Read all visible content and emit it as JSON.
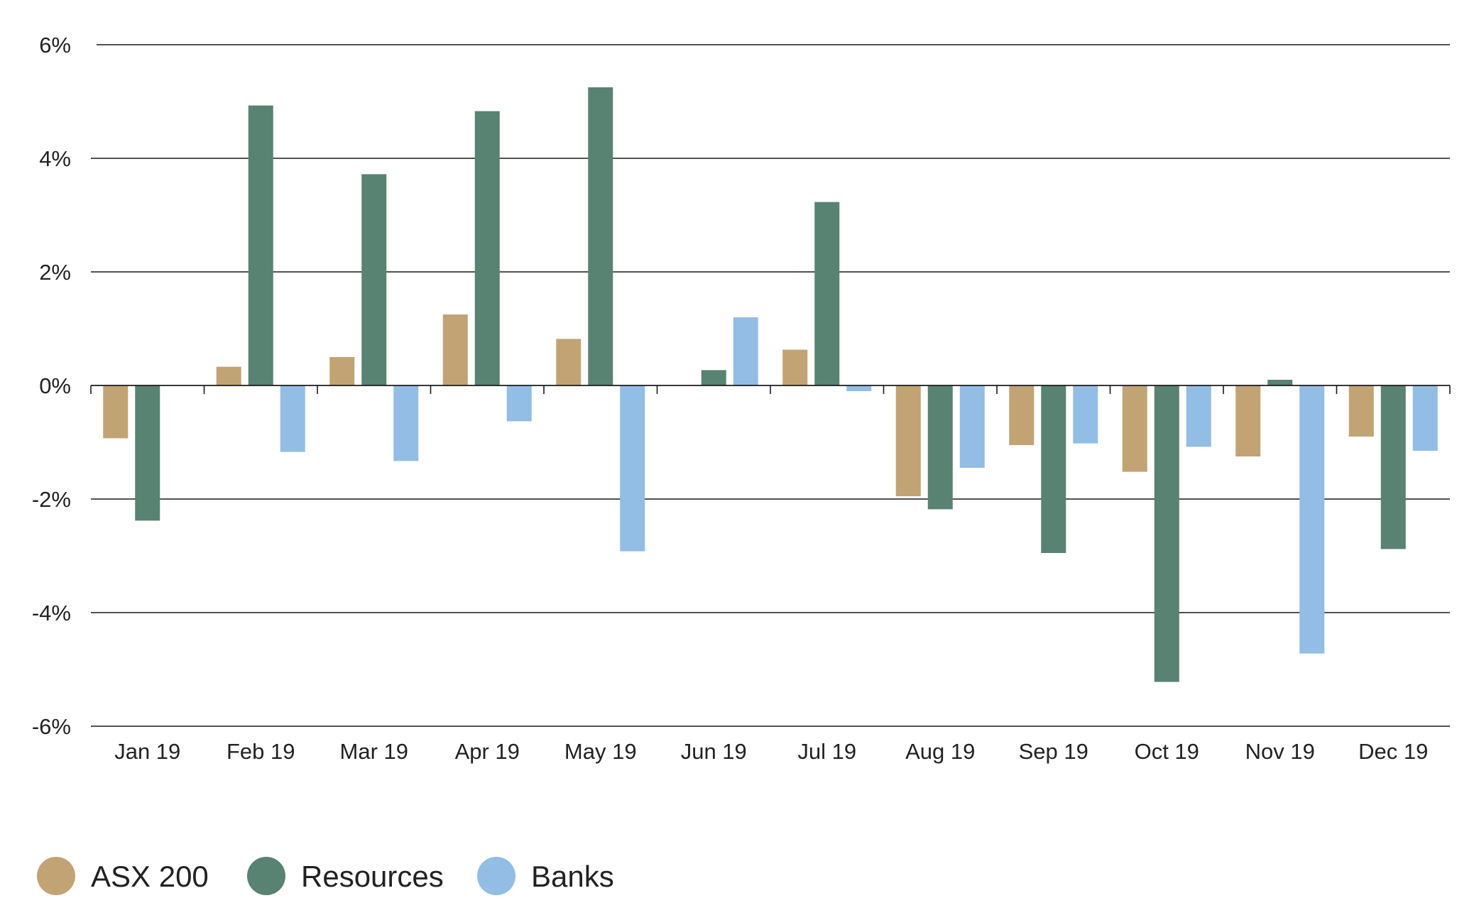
{
  "chart_data": {
    "type": "bar",
    "title": "",
    "xlabel": "",
    "ylabel": "",
    "ylim": [
      -6,
      6
    ],
    "yticks": [
      6,
      4,
      2,
      0,
      -2,
      -4,
      -6
    ],
    "ytick_labels": [
      "6%",
      "4%",
      "2%",
      "0%",
      "-2%",
      "-4%",
      "-6%"
    ],
    "grid": "horizontal",
    "legend": "bottom-left",
    "categories": [
      "Jan 19",
      "Feb 19",
      "Mar 19",
      "Apr 19",
      "May 19",
      "Jun 19",
      "Jul 19",
      "Aug 19",
      "Sep 19",
      "Oct 19",
      "Nov 19",
      "Dec 19"
    ],
    "series": [
      {
        "name": "ASX 200",
        "color": "#c2a373",
        "values": [
          -0.93,
          0.33,
          0.5,
          1.25,
          0.82,
          0.0,
          0.63,
          -1.95,
          -1.05,
          -1.52,
          -1.25,
          -0.9
        ]
      },
      {
        "name": "Resources",
        "color": "#588271",
        "values": [
          -2.38,
          4.93,
          3.72,
          4.83,
          5.25,
          0.27,
          3.23,
          -2.18,
          -2.95,
          -5.22,
          0.1,
          -2.88
        ]
      },
      {
        "name": "Banks",
        "color": "#92bde4",
        "values": [
          0.0,
          -1.17,
          -1.33,
          -0.63,
          -2.92,
          1.2,
          -0.1,
          -1.45,
          -1.02,
          -1.08,
          -4.72,
          -1.15
        ]
      }
    ]
  }
}
